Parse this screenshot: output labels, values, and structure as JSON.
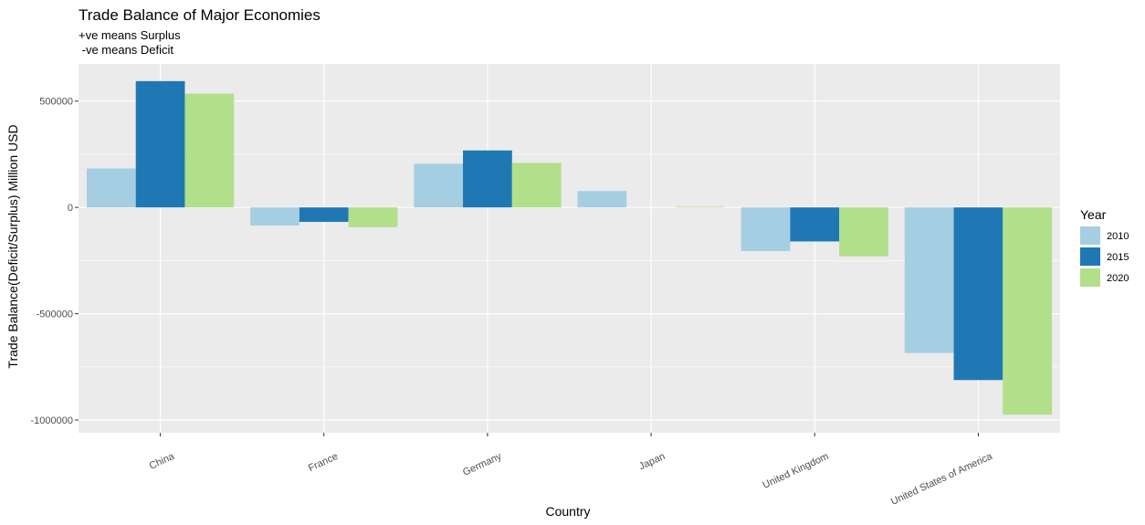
{
  "chart_data": {
    "type": "bar",
    "title": "Trade Balance of Major Economies",
    "subtitle_lines": [
      "+ve means Surplus",
      " -ve means Deficit"
    ],
    "xlabel": "Country",
    "ylabel": "Trade Balance(Deficit/Surplus) Million USD",
    "categories": [
      "China",
      "France",
      "Germany",
      "Japan",
      "United Kingdom",
      "United States of America"
    ],
    "series": [
      {
        "name": "2010",
        "color": "#a6cee3",
        "values": [
          183000,
          -85000,
          205000,
          77000,
          -205000,
          -685000
        ]
      },
      {
        "name": "2015",
        "color": "#1f78b4",
        "values": [
          594000,
          -68000,
          268000,
          0,
          -160000,
          -812000
        ]
      },
      {
        "name": "2020",
        "color": "#b2df8a",
        "values": [
          535000,
          -93000,
          209000,
          3000,
          -230000,
          -975000
        ]
      }
    ],
    "ylim": [
      -1060000,
      675000
    ],
    "yticks": [
      500000,
      0,
      -500000,
      -1000000
    ],
    "ytick_labels": [
      "500000",
      "0",
      "-500000",
      "-1000000"
    ],
    "legend_title": "Year",
    "legend_position": "right",
    "grid": true,
    "panel_color": "#ebebeb"
  }
}
